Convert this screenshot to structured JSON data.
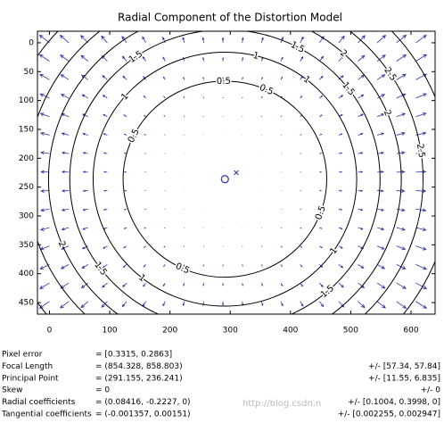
{
  "chart_data": {
    "type": "contour",
    "title": "Radial Component of the Distortion Model",
    "xlim": [
      -20,
      640
    ],
    "xticks": [
      0,
      100,
      200,
      300,
      400,
      500,
      600
    ],
    "ylim": [
      -20,
      470
    ],
    "yticks": [
      0,
      50,
      100,
      150,
      200,
      250,
      300,
      350,
      400,
      450
    ],
    "y_reversed": true,
    "focal_length": [
      854.328,
      858.803
    ],
    "principal_point": [
      291.155,
      236.241
    ],
    "radial_coefficients": [
      0.08416,
      -0.2227,
      0
    ],
    "contour_levels": [
      0.5,
      1,
      1.5,
      2,
      2.5,
      3
    ],
    "contour_color": "#000000",
    "arrow_color": "#2a35a8",
    "marker_color": "#2a35a8"
  },
  "parameters": [
    {
      "label": "Pixel error",
      "value": "= [0.3315, 0.2863]"
    },
    {
      "label": "Focal Length",
      "value": "= (854.328, 858.803)",
      "error": "+/- [57.34, 57.84]"
    },
    {
      "label": "Principal Point",
      "value": "= (291.155, 236.241)",
      "error": "+/- [11.55, 6.835]"
    },
    {
      "label": "Skew",
      "value": "= 0",
      "error": "+/- 0"
    },
    {
      "label": "Radial coefficients",
      "value": "= (0.08416, -0.2227, 0)",
      "error": "+/- [0.1004, 0.3998, 0]"
    },
    {
      "label": "Tangential coefficients",
      "value": "= (-0.001357, 0.00151)",
      "error": "+/- [0.002255, 0.002947]"
    }
  ],
  "watermark": "http://blog.csdn.n"
}
